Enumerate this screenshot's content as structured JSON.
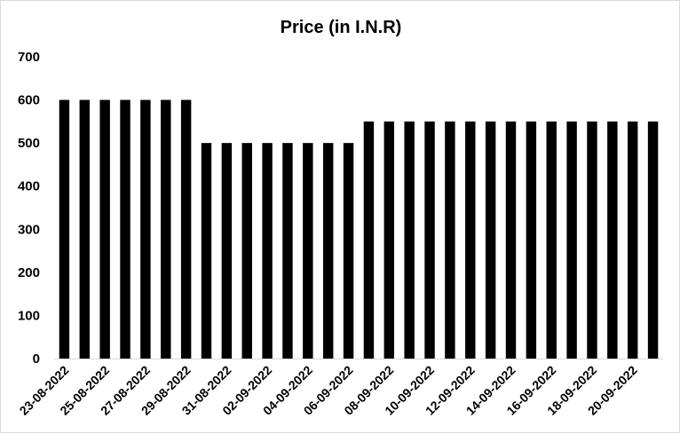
{
  "chart_data": {
    "type": "bar",
    "title": "Price (in I.N.R)",
    "xlabel": "",
    "ylabel": "",
    "ylim": [
      0,
      700
    ],
    "yticks": [
      0,
      100,
      200,
      300,
      400,
      500,
      600,
      700
    ],
    "grid": false,
    "legend": "none",
    "bar_color": "#000000",
    "categories": [
      "23-08-2022",
      "24-08-2022",
      "25-08-2022",
      "26-08-2022",
      "27-08-2022",
      "28-08-2022",
      "29-08-2022",
      "30-08-2022",
      "31-08-2022",
      "01-09-2022",
      "02-09-2022",
      "03-09-2022",
      "04-09-2022",
      "05-09-2022",
      "06-09-2022",
      "07-09-2022",
      "08-09-2022",
      "09-09-2022",
      "10-09-2022",
      "11-09-2022",
      "12-09-2022",
      "13-09-2022",
      "14-09-2022",
      "15-09-2022",
      "16-09-2022",
      "17-09-2022",
      "18-09-2022",
      "19-09-2022",
      "20-09-2022",
      "21-09-2022"
    ],
    "x_tick_labels_shown": [
      "23-08-2022",
      "25-08-2022",
      "27-08-2022",
      "29-08-2022",
      "31-08-2022",
      "02-09-2022",
      "04-09-2022",
      "06-09-2022",
      "08-09-2022",
      "10-09-2022",
      "12-09-2022",
      "14-09-2022",
      "16-09-2022",
      "18-09-2022",
      "20-09-2022"
    ],
    "values": [
      600,
      600,
      600,
      600,
      600,
      600,
      600,
      500,
      500,
      500,
      500,
      500,
      500,
      500,
      500,
      550,
      550,
      550,
      550,
      550,
      550,
      550,
      550,
      550,
      550,
      550,
      550,
      550,
      550,
      550
    ]
  }
}
